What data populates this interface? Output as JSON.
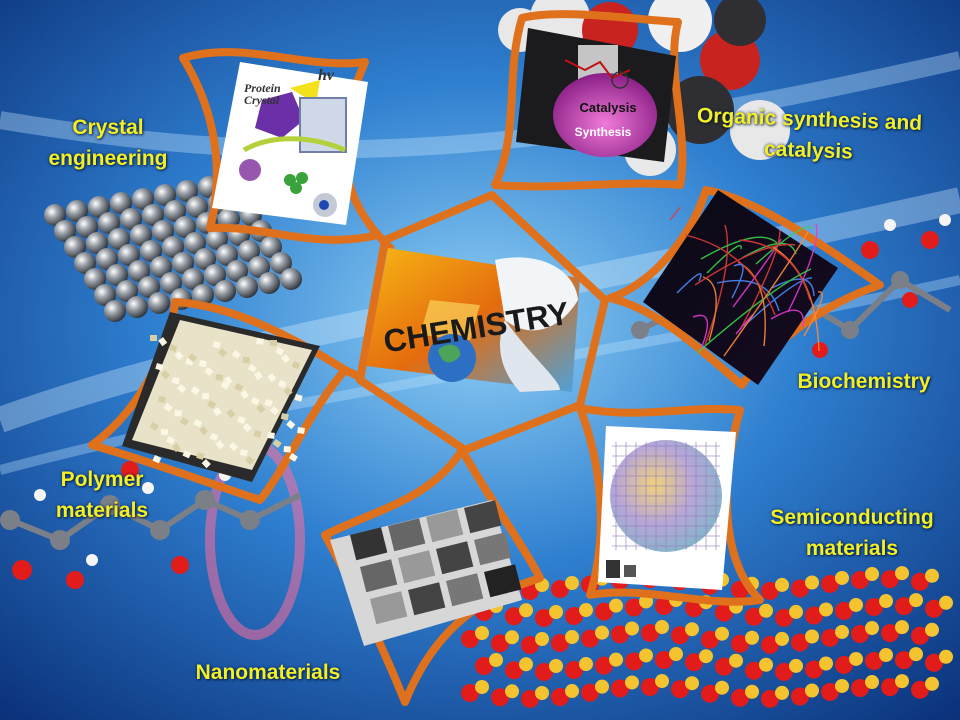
{
  "center": {
    "title": "CHEMISTRY"
  },
  "topics": [
    {
      "id": "crystal",
      "lines": [
        "Crystal",
        "engineering"
      ]
    },
    {
      "id": "organic",
      "lines": [
        "Organic synthesis and",
        "catalysis"
      ]
    },
    {
      "id": "biochem",
      "lines": [
        "Biochemistry"
      ]
    },
    {
      "id": "semi",
      "lines": [
        "Semiconducting",
        "materials"
      ]
    },
    {
      "id": "nano",
      "lines": [
        "Nanomaterials"
      ]
    },
    {
      "id": "polymer",
      "lines": [
        "Polymer",
        "materials"
      ]
    }
  ],
  "image_text": {
    "protein_crystal": [
      "Protein",
      "Crystal"
    ],
    "hv": "hv",
    "catalysis": "Catalysis",
    "synthesis": "Synthesis"
  },
  "colors": {
    "frame": "#e0711c",
    "label": "#f2ef25",
    "background": "#1f63b8"
  }
}
